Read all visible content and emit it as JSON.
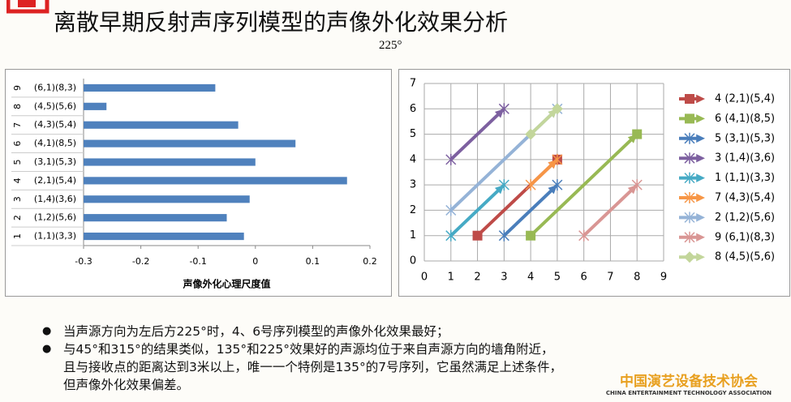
{
  "title": "离散早期反射声序列模型的声像外化效果分析",
  "subtitle": "225°",
  "bullets": [
    [
      "当声源方向为左后方225°时，4、6号序列模型的声像外化效果最好；"
    ],
    [
      "与45°和315°的结果类似，135°和225°效果好的声源均位于来自声源方向的墙角附近，",
      "且与接收点的距离达到3米以上，唯一一个特例是135°的7号序列，它虽然满足上述条件，",
      "但声像外化效果偏差。"
    ]
  ],
  "footer": {
    "name": "中国演艺设备技术协会",
    "name_en": "CHINA ENTERTAINMENT TECHNOLOGY ASSOCIATION"
  },
  "chart_data": [
    {
      "type": "bar",
      "orientation": "horizontal",
      "categories": [
        "(1,1)(3,3)",
        "(1,2)(5,6)",
        "(1,4)(3,6)",
        "(2,1)(5,4)",
        "(3,1)(5,3)",
        "(4,1)(8,5)",
        "(4,3)(5,4)",
        "(4,5)(5,6)",
        "(6,1)(8,3)"
      ],
      "category_numbers": [
        "1",
        "2",
        "3",
        "4",
        "5",
        "6",
        "7",
        "8",
        "9"
      ],
      "values": [
        -0.02,
        -0.05,
        -0.01,
        0.16,
        0,
        0.07,
        -0.03,
        -0.26,
        -0.07
      ],
      "color": "#4f81bd",
      "x_label": "声像外化心理尺度值",
      "xlim": [
        -0.3,
        0.2
      ],
      "xticks": [
        -0.3,
        -0.2,
        -0.1,
        0,
        0.1,
        0.2
      ],
      "grid": false
    },
    {
      "type": "vector",
      "xlim": [
        0,
        9
      ],
      "xticks": [
        0,
        1,
        2,
        3,
        4,
        5,
        6,
        7,
        8,
        9
      ],
      "ylim": [
        0,
        7
      ],
      "yticks": [
        0,
        1,
        2,
        3,
        4,
        5,
        6,
        7
      ],
      "grid": true,
      "legend": "right",
      "series": [
        {
          "name": "4 (2,1)(5,4)",
          "color": "#be4b48",
          "marker": "square",
          "x": [
            2,
            5
          ],
          "y": [
            1,
            4
          ]
        },
        {
          "name": "6 (4,1)(8,5)",
          "color": "#98b954",
          "marker": "square",
          "x": [
            4,
            8
          ],
          "y": [
            1,
            5
          ]
        },
        {
          "name": "5 (3,1)(5,3)",
          "color": "#4a7ebb",
          "marker": "x",
          "x": [
            3,
            5
          ],
          "y": [
            1,
            3
          ]
        },
        {
          "name": "3 (1,4)(3,6)",
          "color": "#7d60a0",
          "marker": "x",
          "x": [
            1,
            3
          ],
          "y": [
            4,
            6
          ]
        },
        {
          "name": "1 (1,1)(3,3)",
          "color": "#46aac5",
          "marker": "x",
          "x": [
            1,
            3
          ],
          "y": [
            1,
            3
          ]
        },
        {
          "name": "7 (4,3)(5,4)",
          "color": "#f79646",
          "marker": "x",
          "x": [
            4,
            5
          ],
          "y": [
            3,
            4
          ]
        },
        {
          "name": "2 (1,2)(5,6)",
          "color": "#95b3d7",
          "marker": "x",
          "x": [
            1,
            5
          ],
          "y": [
            2,
            6
          ]
        },
        {
          "name": "9 (6,1)(8,3)",
          "color": "#d99694",
          "marker": "x",
          "x": [
            6,
            8
          ],
          "y": [
            1,
            3
          ]
        },
        {
          "name": "8 (4,5)(5,6)",
          "color": "#c3d69b",
          "marker": "diamond",
          "x": [
            4,
            5
          ],
          "y": [
            5,
            6
          ]
        }
      ]
    }
  ]
}
